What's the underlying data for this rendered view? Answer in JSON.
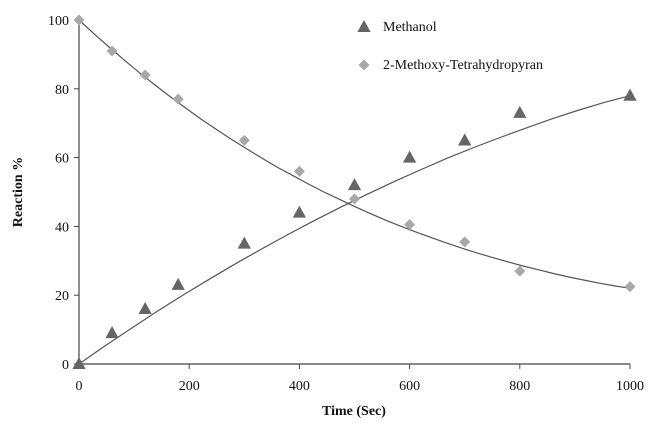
{
  "chart_data": {
    "type": "scatter",
    "title": "",
    "xlabel": "Time (Sec)",
    "ylabel": "Reaction %",
    "xlim": [
      0,
      1000
    ],
    "ylim": [
      0,
      100
    ],
    "xticks": [
      0,
      200,
      400,
      600,
      800,
      1000
    ],
    "yticks": [
      0,
      20,
      40,
      60,
      80,
      100
    ],
    "grid": false,
    "legend_position": "top-right",
    "series": [
      {
        "name": "Methanol",
        "marker": "triangle",
        "color": "#666666",
        "x": [
          0,
          60,
          120,
          180,
          300,
          400,
          500,
          600,
          700,
          800,
          1000
        ],
        "y": [
          0,
          9,
          16,
          23,
          35,
          44,
          52,
          60,
          65,
          73,
          78
        ],
        "trend": [
          0,
          5.3,
          10.4,
          15.4,
          20.2,
          24.8,
          29.3,
          33.6,
          37.8,
          41.8,
          45.7,
          49.4,
          53,
          56.4,
          59.7,
          62.8,
          65.7,
          68.5,
          71.2,
          73.7,
          76,
          78
        ]
      },
      {
        "name": "2-Methoxy-Tetrahydropyran",
        "marker": "diamond",
        "color": "#a8a8a8",
        "x": [
          0,
          60,
          120,
          180,
          300,
          400,
          500,
          600,
          700,
          800,
          1000
        ],
        "y": [
          100,
          91,
          84,
          77,
          65,
          56,
          48,
          40.5,
          35.5,
          27,
          22.5
        ],
        "trend": [
          100,
          95.9,
          92,
          88.2,
          84.5,
          81,
          77.6,
          74.3,
          71.1,
          68.1,
          65.2,
          62.4,
          59.7,
          57.1,
          54.7,
          52.3,
          50,
          47.9,
          45.8,
          43.8,
          41.9,
          40.1,
          38.4,
          36.8,
          35.2,
          33.7,
          32.3,
          31,
          29.7,
          28.5,
          27.4,
          26.3,
          25.3,
          24.4,
          23.5,
          22.7,
          22
        ]
      }
    ]
  }
}
